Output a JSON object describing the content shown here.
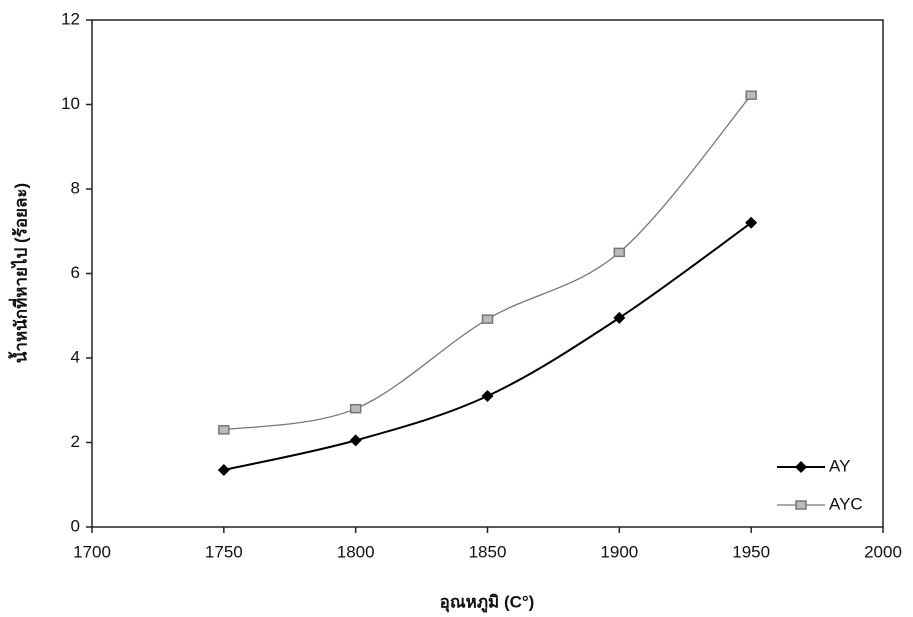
{
  "chart_data": {
    "type": "line",
    "x_label": "อุณหภูมิ (C°)",
    "y_label": "น้ำหนักที่หายไป (ร้อยละ)",
    "x": [
      1750,
      1800,
      1850,
      1900,
      1950
    ],
    "series": [
      {
        "name": "AY",
        "color": "#000000",
        "marker": "diamond",
        "values": [
          1.35,
          2.05,
          3.1,
          4.95,
          7.2
        ]
      },
      {
        "name": "AYC",
        "color": "#777777",
        "marker": "square",
        "values": [
          2.3,
          2.8,
          4.92,
          6.5,
          10.22
        ]
      }
    ],
    "xlim": [
      1700,
      2000
    ],
    "xticks": [
      1700,
      1750,
      1800,
      1850,
      1900,
      1950,
      2000
    ],
    "ylim": [
      0,
      12
    ],
    "yticks": [
      0,
      2,
      4,
      6,
      8,
      10,
      12
    ],
    "smooth": true,
    "legend": "lower-right"
  }
}
